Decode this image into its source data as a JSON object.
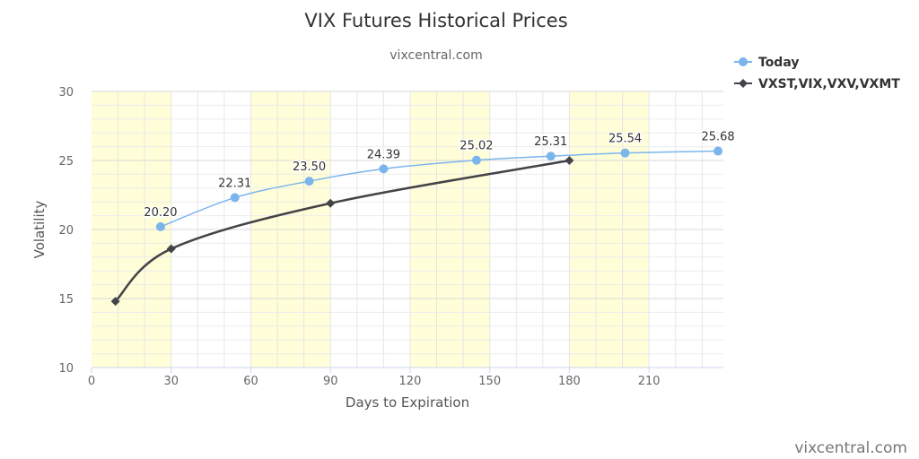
{
  "chart_data": {
    "type": "line",
    "title": "VIX Futures Historical Prices",
    "subtitle": "vixcentral.com",
    "xlabel": "Days to Expiration",
    "ylabel": "Volatility",
    "xlim": [
      0,
      238
    ],
    "ylim": [
      10,
      30
    ],
    "x_ticks": [
      0,
      30,
      60,
      90,
      120,
      150,
      180,
      210
    ],
    "y_ticks": [
      10,
      15,
      20,
      25,
      30
    ],
    "bands": [
      [
        0,
        30
      ],
      [
        60,
        90
      ],
      [
        120,
        150
      ],
      [
        180,
        210
      ]
    ],
    "grid": true,
    "legend_position": "top-right",
    "series": [
      {
        "name": "Today",
        "color": "#7cb5ec",
        "marker": "circle",
        "labels": true,
        "points": [
          {
            "x": 26,
            "y": 20.2
          },
          {
            "x": 54,
            "y": 22.31
          },
          {
            "x": 82,
            "y": 23.5
          },
          {
            "x": 110,
            "y": 24.39
          },
          {
            "x": 145,
            "y": 25.02
          },
          {
            "x": 173,
            "y": 25.31
          },
          {
            "x": 201,
            "y": 25.54
          },
          {
            "x": 236,
            "y": 25.68
          }
        ]
      },
      {
        "name": "VXST,VIX,VXV,VXMT",
        "color": "#434348",
        "marker": "diamond",
        "labels": false,
        "points": [
          {
            "x": 9,
            "y": 14.8
          },
          {
            "x": 30,
            "y": 18.6
          },
          {
            "x": 90,
            "y": 21.9
          },
          {
            "x": 180,
            "y": 25.0
          }
        ]
      }
    ]
  },
  "credit": "vixcentral.com"
}
